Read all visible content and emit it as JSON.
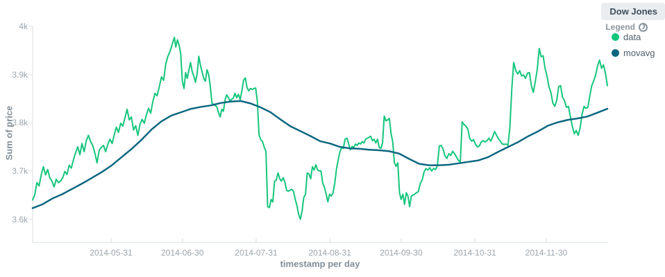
{
  "panel": {
    "title": "Dow Jones"
  },
  "legend": {
    "label": "Legend",
    "toggle_icon": "circle-chevron-right",
    "items": [
      {
        "label": "data",
        "color": "#14c57c"
      },
      {
        "label": "movavg",
        "color": "#0b6780"
      }
    ]
  },
  "chart_data": {
    "type": "line",
    "title": "Dow Jones",
    "xlabel": "timestamp per day",
    "ylabel": "Sum of price",
    "legend_position": "right",
    "grid": false,
    "ylim": [
      3552,
      4000
    ],
    "y_ticks": [
      {
        "label": "4k",
        "value": 4000
      },
      {
        "label": "3.9k",
        "value": 3900
      },
      {
        "label": "3.8k",
        "value": 3800
      },
      {
        "label": "3.7k",
        "value": 3700
      },
      {
        "label": "3.6k",
        "value": 3600
      }
    ],
    "x_start_date": "2014-04-28",
    "x_end_date": "2014-12-27",
    "x_total_days": 242,
    "x_ticks": [
      "2014-05-31",
      "2014-06-30",
      "2014-07-31",
      "2014-08-31",
      "2014-09-30",
      "2014-10-31",
      "2014-11-30"
    ],
    "series": [
      {
        "name": "data",
        "color": "#14c57c",
        "stroke_width": 2,
        "segments": [
          {
            "from_day": 0,
            "to_day": 59.6,
            "values": [
              3640,
              3651,
              3676,
              3669,
              3692,
              3709,
              3692,
              3703,
              3686,
              3679,
              3667,
              3683,
              3676,
              3679,
              3686,
              3699,
              3693,
              3712,
              3706,
              3723,
              3738,
              3750,
              3734,
              3757,
              3740,
              3763,
              3774,
              3761,
              3753,
              3737,
              3717,
              3743,
              3749,
              3753,
              3740,
              3755,
              3766,
              3757,
              3775,
              3791,
              3780,
              3799,
              3793,
              3810,
              3828,
              3806,
              3812,
              3785,
              3794,
              3774,
              3797,
              3807,
              3799,
              3817,
              3830,
              3820,
              3844,
              3861,
              3856,
              3875,
              3895,
              3888,
              3922,
              3938,
              3948,
              3963,
              3977
            ]
          },
          {
            "from_day": 60.2,
            "to_day": 84.4,
            "values": [
              3957,
              3972,
              3961,
              3944,
              3886,
              3871,
              3904,
              3892,
              3910,
              3925,
              3906,
              3896,
              3884,
              3902,
              3938,
              3919,
              3906,
              3892,
              3886,
              3910,
              3900,
              3875,
              3841,
              3838,
              3836,
              3833,
              3821,
              3812,
              3828,
              3824,
              3848,
              3858,
              3852,
              3845,
              3849,
              3851
            ]
          },
          {
            "from_day": 85.1,
            "to_day": 131.4,
            "values": [
              3861,
              3852,
              3859,
              3848,
              3866,
              3888,
              3893,
              3873,
              3866,
              3871,
              3869,
              3871,
              3872,
              3845,
              3775,
              3765,
              3761,
              3749,
              3741,
              3626,
              3624,
              3641,
              3636,
              3679,
              3681,
              3696,
              3684,
              3679,
              3686,
              3677,
              3660,
              3658,
              3660,
              3662,
              3658,
              3641,
              3629,
              3610,
              3600,
              3617,
              3645,
              3652,
              3696,
              3694,
              3684,
              3709,
              3702,
              3713,
              3702,
              3700,
              3700,
              3675,
              3666,
              3652,
              3636,
              3652,
              3648,
              3655,
              3675,
              3704,
              3723,
              3740,
              3749,
              3747,
              3766
            ]
          },
          {
            "from_day": 132.2,
            "to_day": 161.4,
            "values": [
              3768,
              3756,
              3744,
              3751,
              3749,
              3756,
              3753,
              3758,
              3756,
              3761,
              3758,
              3766,
              3768,
              3770,
              3772,
              3763,
              3766,
              3758,
              3766,
              3749,
              3747,
              3758,
              3814,
              3804,
              3806,
              3809,
              3778,
              3761,
              3717,
              3710,
              3717,
              3655,
              3641,
              3652,
              3631,
              3655,
              3648,
              3626,
              3648,
              3650,
              3652,
              3655
            ]
          },
          {
            "from_day": 162.2,
            "to_day": 202.3,
            "values": [
              3657,
              3674,
              3681,
              3698,
              3705,
              3702,
              3707,
              3700,
              3705,
              3703,
              3711,
              3752,
              3753,
              3745,
              3731,
              3726,
              3736,
              3732,
              3741,
              3736,
              3729,
              3722,
              3719,
              3802,
              3796,
              3793,
              3786,
              3767,
              3762,
              3765,
              3755,
              3750,
              3752,
              3760,
              3763,
              3760,
              3763,
              3768,
              3762,
              3771,
              3782,
              3774,
              3767,
              3762,
              3756,
              3755,
              3756,
              3753,
              3790,
              3870,
              3925
            ]
          },
          {
            "from_day": 203.2,
            "to_day": 241.7,
            "values": [
              3908,
              3901,
              3908,
              3897,
              3899,
              3892,
              3903,
              3904,
              3877,
              3863,
              3885,
              3911,
              3954,
              3937,
              3939,
              3913,
              3897,
              3875,
              3863,
              3841,
              3834,
              3846,
              3875,
              3877,
              3853,
              3846,
              3832,
              3834,
              3813,
              3793,
              3777,
              3784,
              3774,
              3789,
              3817,
              3834,
              3830,
              3832,
              3856,
              3877,
              3887,
              3899,
              3918,
              3930,
              3913,
              3920,
              3903,
              3877
            ]
          }
        ]
      },
      {
        "name": "movavg",
        "color": "#0b6780",
        "stroke_width": 2.5,
        "segments": [
          {
            "from_day": 0,
            "to_day": 241.7,
            "values": [
              3623,
              3631,
              3643,
              3652,
              3663,
              3674,
              3686,
              3698,
              3712,
              3729,
              3746,
              3765,
              3786,
              3803,
              3815,
              3822,
              3829,
              3833,
              3836,
              3841,
              3844,
              3845,
              3840,
              3832,
              3822,
              3807,
              3793,
              3783,
              3773,
              3762,
              3757,
              3750,
              3747,
              3746,
              3744,
              3743,
              3741,
              3736,
              3725,
              3715,
              3712,
              3712,
              3713,
              3716,
              3719,
              3722,
              3729,
              3740,
              3750,
              3760,
              3772,
              3782,
              3794,
              3801,
              3806,
              3809,
              3813,
              3821,
              3829
            ]
          }
        ]
      }
    ]
  }
}
